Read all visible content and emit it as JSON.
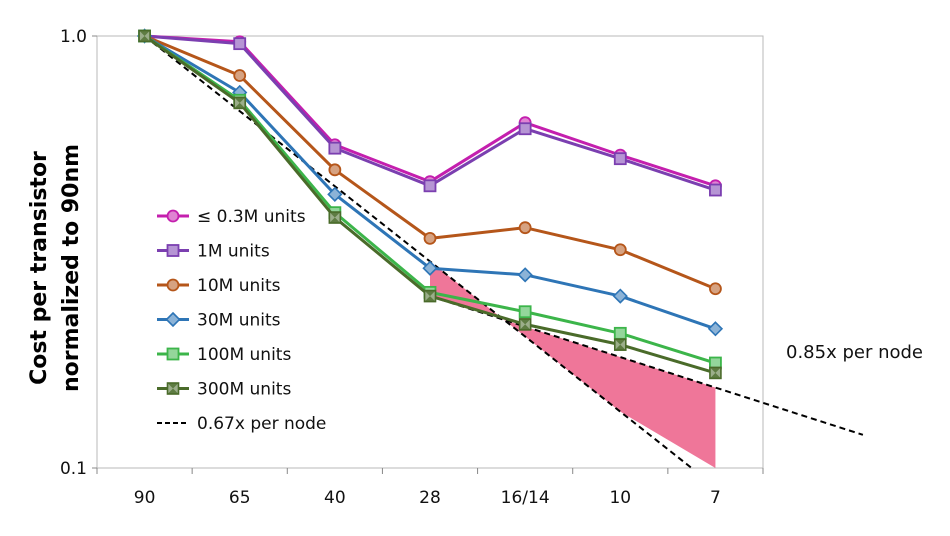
{
  "chart_data": {
    "type": "line",
    "title": "",
    "xlabel": "",
    "ylabel": [
      "Cost per transistor",
      "normalized to 90nm"
    ],
    "y_scale": "log",
    "ylim": [
      0.1,
      1.0
    ],
    "yticks": [
      "0.1",
      "1.0"
    ],
    "grid": false,
    "legend_position": "left-inside",
    "categories": [
      "90",
      "65",
      "40",
      "28",
      "16/14",
      "10",
      "7"
    ],
    "series": [
      {
        "name": "≤ 0.3M units",
        "color": "#c41fae",
        "marker": "circle",
        "values": [
          1.0,
          0.97,
          0.56,
          0.46,
          0.63,
          0.53,
          0.45
        ]
      },
      {
        "name": "1M units",
        "color": "#7b3fb0",
        "marker": "square",
        "values": [
          1.0,
          0.96,
          0.55,
          0.45,
          0.61,
          0.52,
          0.44
        ]
      },
      {
        "name": "10M units",
        "color": "#b5561a",
        "marker": "circle",
        "values": [
          1.0,
          0.81,
          0.49,
          0.34,
          0.36,
          0.32,
          0.26
        ]
      },
      {
        "name": "30M units",
        "color": "#2e75b6",
        "marker": "diamond",
        "values": [
          1.0,
          0.74,
          0.43,
          0.29,
          0.28,
          0.25,
          0.21
        ]
      },
      {
        "name": "100M units",
        "color": "#3cb54a",
        "marker": "square",
        "values": [
          1.0,
          0.71,
          0.39,
          0.255,
          0.23,
          0.205,
          0.175
        ]
      },
      {
        "name": "300M units",
        "color": "#4a6b2a",
        "marker": "bowtie",
        "values": [
          1.0,
          0.7,
          0.38,
          0.25,
          0.215,
          0.193,
          0.166
        ]
      }
    ],
    "reference_lines": [
      {
        "name": "0.67x per node",
        "style": "dashed",
        "color": "#000000",
        "ratio": 0.67,
        "show_in_legend": true
      },
      {
        "name": "0.85x per node",
        "style": "dashed",
        "color": "#000000",
        "ratio": 0.85,
        "from_category": "28",
        "start_value": 0.25,
        "show_in_legend": false
      }
    ],
    "shaded_region": {
      "color": "#ee6f93",
      "between": [
        "0.85x per node",
        "0.67x per node"
      ],
      "from_category": "28",
      "to_category": "7"
    },
    "annotations": [
      {
        "text": "0.85x per node"
      }
    ]
  }
}
